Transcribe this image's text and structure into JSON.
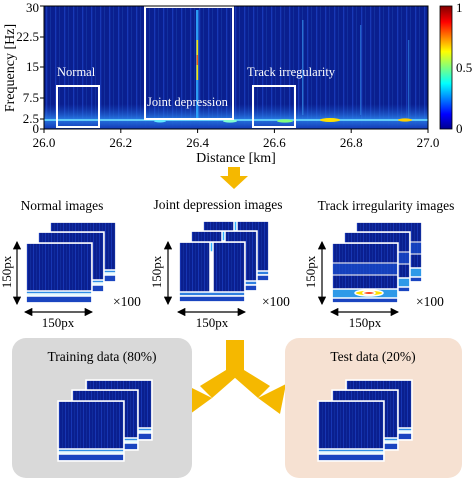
{
  "top_plot": {
    "ylabel": "Frequency [Hz]",
    "xlabel": "Distance [km]",
    "y_ticks": [
      "0",
      "2.5",
      "7.5",
      "15",
      "22.5",
      "30"
    ],
    "x_ticks": [
      "26.0",
      "26.2",
      "26.4",
      "26.6",
      "26.8",
      "27.0"
    ],
    "colorbar_ticks": [
      "1",
      "0.5",
      "0"
    ],
    "regions": {
      "normal": "Normal",
      "joint": "Joint depression",
      "track": "Track irregularity"
    }
  },
  "arrow_down": "down-arrow",
  "groups": [
    {
      "title": "Normal images",
      "height_label": "150px",
      "width_label": "150px",
      "count": "×100"
    },
    {
      "title": "Joint depression images",
      "height_label": "150px",
      "width_label": "150px",
      "count": "×100"
    },
    {
      "title": "Track irregularity images",
      "height_label": "150px",
      "width_label": "150px",
      "count": "×100"
    }
  ],
  "split": {
    "training": "Training data (80%)",
    "test": "Test data (20%)"
  },
  "colors": {
    "spectrogram_bg": "#0a1f8f",
    "arrow": "#f5b800",
    "training_box": "#d9d9d9",
    "test_box": "#f6e1d2",
    "highlight_box": "#ffffff"
  }
}
